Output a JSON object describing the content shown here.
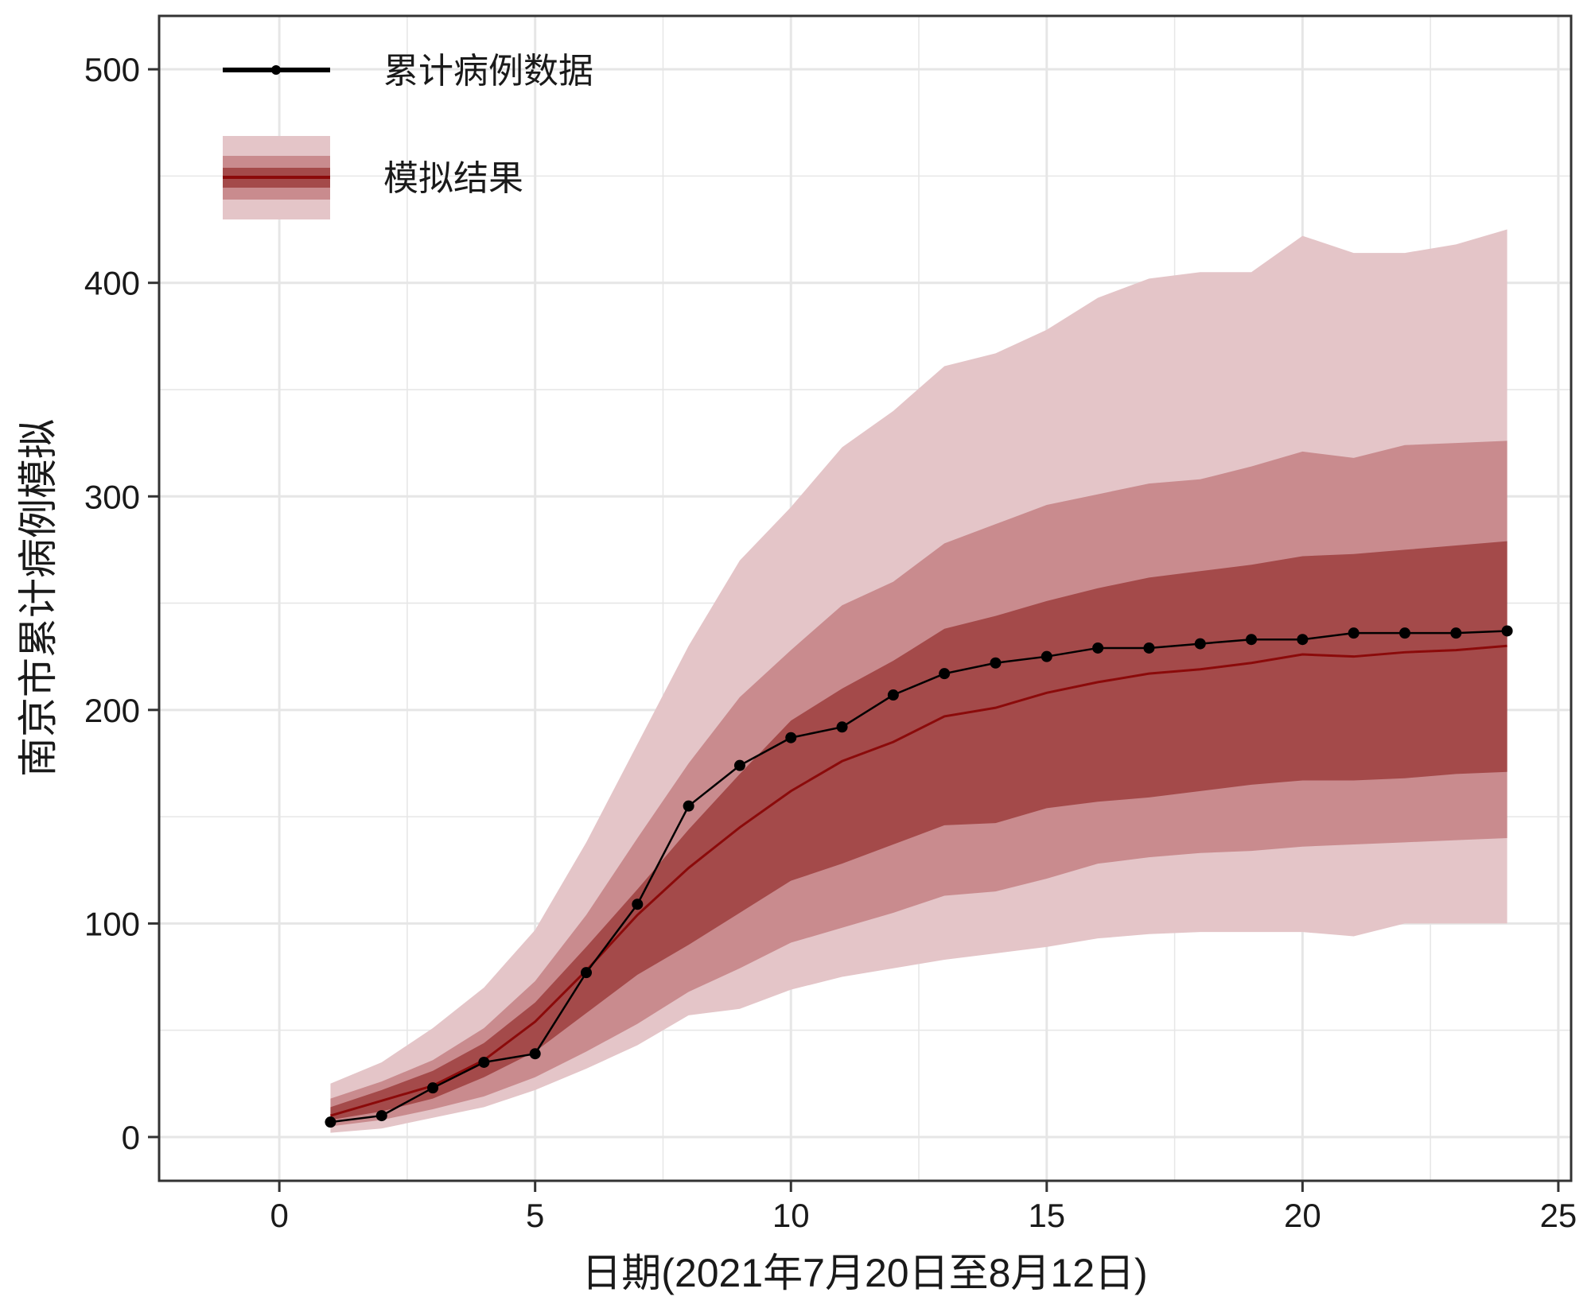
{
  "chart_data": {
    "type": "line",
    "xlabel": "日期(2021年7月20日至8月12日)",
    "ylabel": "南京市累计病例模拟",
    "xlim": [
      -2.35,
      25.25
    ],
    "ylim": [
      -20.5,
      525
    ],
    "x_ticks": [
      0,
      5,
      10,
      15,
      20,
      25
    ],
    "y_ticks": [
      0,
      100,
      200,
      300,
      400,
      500
    ],
    "grid": true,
    "legend_position": "top-left",
    "legend": [
      {
        "label": "累计病例数据",
        "kind": "line-point"
      },
      {
        "label": "模拟结果",
        "kind": "ribbon-line"
      }
    ],
    "colors": {
      "observed": "#000000",
      "simulated_line": "#8b0a0a",
      "band_outer": "#e4c5c8",
      "band_middle": "#c98b8e",
      "band_inner": "#a44a4a",
      "grid": "#e6e6e6",
      "frame": "#333333"
    },
    "x": [
      1,
      2,
      3,
      4,
      5,
      6,
      7,
      8,
      9,
      10,
      11,
      12,
      13,
      14,
      15,
      16,
      17,
      18,
      19,
      20,
      21,
      22,
      23,
      24
    ],
    "series": [
      {
        "name": "累计病例数据",
        "values": [
          7,
          10,
          23,
          35,
          39,
          77,
          109,
          155,
          174,
          187,
          192,
          207,
          217,
          222,
          225,
          229,
          229,
          231,
          233,
          233,
          236,
          236,
          236,
          237
        ]
      },
      {
        "name": "模拟结果",
        "values": [
          10,
          17,
          24,
          36,
          54,
          78,
          104,
          126,
          145,
          162,
          176,
          185,
          197,
          201,
          208,
          213,
          217,
          219,
          222,
          226,
          225,
          227,
          228,
          230
        ]
      }
    ],
    "bands": [
      {
        "level": "outer",
        "lower": [
          2,
          4,
          9,
          14,
          22,
          32,
          43,
          57,
          60,
          69,
          75,
          79,
          83,
          86,
          89,
          93,
          95,
          96,
          96,
          96,
          94,
          100,
          100,
          100
        ],
        "upper": [
          25,
          35,
          51,
          70,
          97,
          138,
          184,
          230,
          270,
          295,
          323,
          340,
          361,
          367,
          378,
          393,
          402,
          405,
          405,
          422,
          414,
          414,
          418,
          425
        ]
      },
      {
        "level": "middle",
        "lower": [
          5,
          8,
          13,
          19,
          28,
          40,
          53,
          68,
          79,
          91,
          98,
          105,
          113,
          115,
          121,
          128,
          131,
          133,
          134,
          136,
          137,
          138,
          139,
          140
        ],
        "upper": [
          18,
          26,
          36,
          51,
          73,
          104,
          140,
          175,
          206,
          228,
          249,
          260,
          278,
          287,
          296,
          301,
          306,
          308,
          314,
          321,
          318,
          324,
          325,
          326
        ]
      },
      {
        "level": "inner",
        "lower": [
          8,
          12,
          18,
          28,
          40,
          58,
          76,
          90,
          105,
          120,
          128,
          137,
          146,
          147,
          154,
          157,
          159,
          162,
          165,
          167,
          167,
          168,
          170,
          171
        ],
        "upper": [
          14,
          22,
          31,
          44,
          63,
          89,
          116,
          144,
          170,
          195,
          210,
          223,
          238,
          244,
          251,
          257,
          262,
          265,
          268,
          272,
          273,
          275,
          277,
          279
        ]
      }
    ]
  }
}
